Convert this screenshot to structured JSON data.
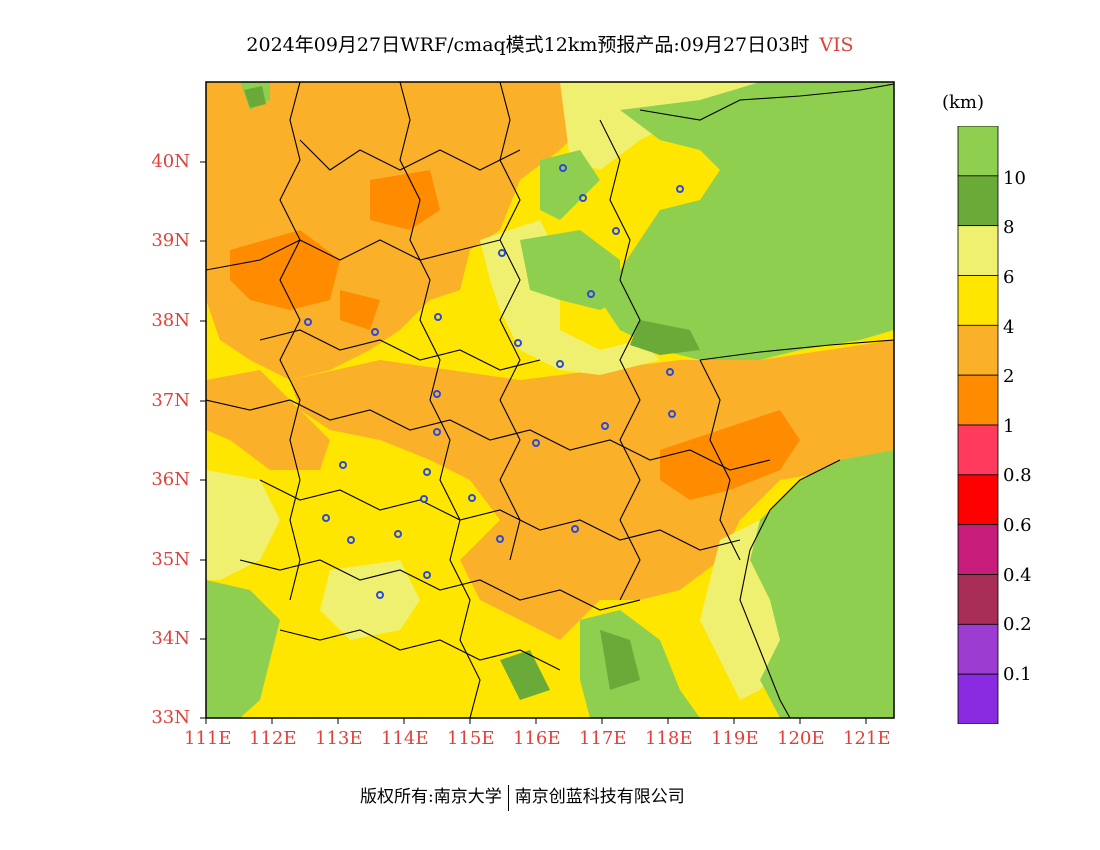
{
  "title": {
    "main": "2024年09月27日WRF/cmaq模式12km预报产品:09月27日03时",
    "variable": "VIS"
  },
  "unit": "(km)",
  "lat_labels": [
    "40N",
    "39N",
    "38N",
    "37N",
    "36N",
    "35N",
    "34N",
    "33N"
  ],
  "lon_labels": [
    "111E",
    "112E",
    "113E",
    "114E",
    "115E",
    "116E",
    "117E",
    "118E",
    "119E",
    "120E",
    "121E"
  ],
  "colorbar": {
    "labels": [
      "10",
      "8",
      "6",
      "4",
      "2",
      "1",
      "0.8",
      "0.6",
      "0.4",
      "0.2",
      "0.1"
    ],
    "colors": [
      "#8fcf50",
      "#6aaa38",
      "#f0f070",
      "#ffe600",
      "#fbb02a",
      "#ff8c00",
      "#ff3a5c",
      "#ff0000",
      "#c81c7a",
      "#a82e58",
      "#9c3cd0",
      "#8a2be2"
    ]
  },
  "map_colors": {
    "vis_gt_10": "#8fcf50",
    "vis_8_10": "#6aaa38",
    "vis_6_8": "#f0f070",
    "vis_4_6": "#ffe600",
    "vis_2_4": "#fbb02a",
    "vis_1_2": "#ff8c00",
    "city_marker": "#2a4ad8"
  },
  "footer": {
    "left": "版权所有:南京大学",
    "right": "南京创蓝科技有限公司"
  }
}
